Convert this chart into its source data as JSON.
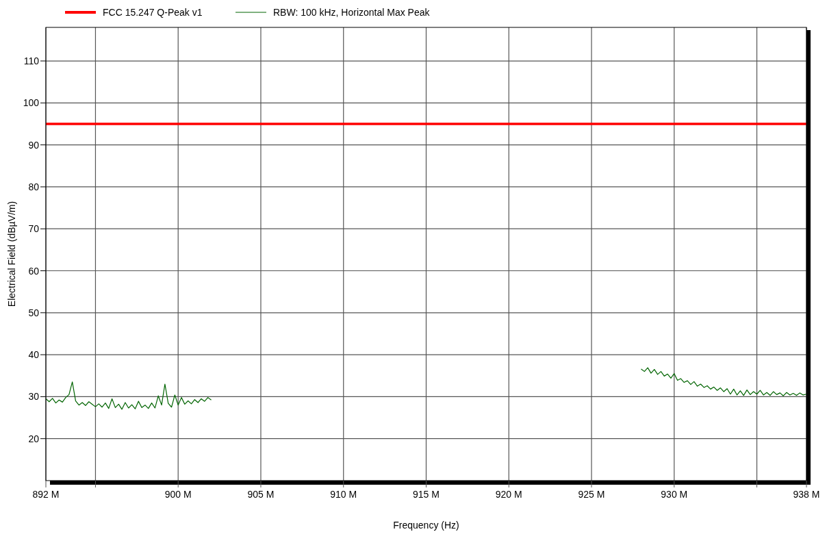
{
  "chart_data": {
    "type": "line",
    "xlabel": "Frequency (Hz)",
    "ylabel": "Electrical Field (dBµV/m)",
    "xlim": [
      892,
      938
    ],
    "ylim": [
      10,
      118
    ],
    "xticks": [
      {
        "value": 892,
        "label": "892 M"
      },
      {
        "value": 895,
        "label": null
      },
      {
        "value": 900,
        "label": "900 M"
      },
      {
        "value": 905,
        "label": "905 M"
      },
      {
        "value": 910,
        "label": "910 M"
      },
      {
        "value": 915,
        "label": "915 M"
      },
      {
        "value": 920,
        "label": "920 M"
      },
      {
        "value": 925,
        "label": "925 M"
      },
      {
        "value": 930,
        "label": "930 M"
      },
      {
        "value": 935,
        "label": null
      },
      {
        "value": 938,
        "label": "938 M"
      }
    ],
    "yticks": [
      20,
      30,
      40,
      50,
      60,
      70,
      80,
      90,
      100,
      110
    ],
    "grid": true,
    "legend": "top left",
    "marker": "none",
    "line_style": "solid",
    "series": [
      {
        "name": "FCC 15.247 Q-Peak v1",
        "color": "#ff0000",
        "x": [
          892,
          938
        ],
        "values": [
          95,
          95
        ]
      },
      {
        "name": "RBW: 100 kHz, Horizontal Max Peak",
        "color": "#006400",
        "x": [
          892,
          892.2,
          892.4,
          892.6,
          892.8,
          893,
          893.2,
          893.4,
          893.6,
          893.8,
          894,
          894.2,
          894.4,
          894.6,
          894.8,
          895,
          895.2,
          895.4,
          895.6,
          895.8,
          896,
          896.2,
          896.4,
          896.6,
          896.8,
          897,
          897.2,
          897.4,
          897.6,
          897.8,
          898,
          898.2,
          898.4,
          898.6,
          898.8,
          899,
          899.2,
          899.4,
          899.6,
          899.8,
          900,
          900.2,
          900.4,
          900.6,
          900.8,
          901,
          901.2,
          901.4,
          901.6,
          901.8,
          902
        ],
        "values": [
          29.5,
          28.8,
          29.6,
          28.5,
          29.2,
          28.7,
          29.8,
          30.5,
          33.5,
          29,
          28,
          28.6,
          27.9,
          28.8,
          28.2,
          27.6,
          28.3,
          27.5,
          28.5,
          27.2,
          29.5,
          27.4,
          28.2,
          27,
          28.6,
          27.3,
          28.1,
          27.1,
          28.9,
          27.4,
          28,
          27.2,
          28.5,
          27.3,
          30.2,
          28,
          33,
          28.4,
          27.5,
          30.4,
          28,
          29.8,
          28.2,
          29,
          28.3,
          29.3,
          28.6,
          29.5,
          28.9,
          29.8,
          29.2
        ]
      },
      {
        "color": "#006400",
        "x": [
          928,
          928.2,
          928.4,
          928.6,
          928.8,
          929,
          929.2,
          929.4,
          929.6,
          929.8,
          930,
          930.2,
          930.4,
          930.6,
          930.8,
          931,
          931.2,
          931.4,
          931.6,
          931.8,
          932,
          932.2,
          932.4,
          932.6,
          932.8,
          933,
          933.2,
          933.4,
          933.6,
          933.8,
          934,
          934.2,
          934.4,
          934.6,
          934.8,
          935,
          935.2,
          935.4,
          935.6,
          935.8,
          936,
          936.2,
          936.4,
          936.6,
          936.8,
          937,
          937.2,
          937.4,
          937.6,
          937.8,
          938
        ],
        "values": [
          36.6,
          36,
          36.9,
          35.6,
          36.5,
          35.3,
          36,
          34.9,
          35.4,
          34.4,
          35.5,
          33.9,
          34.3,
          33.4,
          33.8,
          32.9,
          33.6,
          32.5,
          33,
          32.2,
          32.6,
          31.8,
          32.3,
          31.5,
          32.1,
          31.2,
          31.9,
          30.6,
          31.8,
          30.4,
          31.4,
          30.3,
          31.6,
          30.5,
          31.2,
          30.6,
          31.5,
          30.4,
          31,
          30.3,
          31.2,
          30.5,
          30.9,
          30.2,
          31,
          30.4,
          30.8,
          30.3,
          30.9,
          30.4,
          30.6
        ]
      }
    ]
  }
}
